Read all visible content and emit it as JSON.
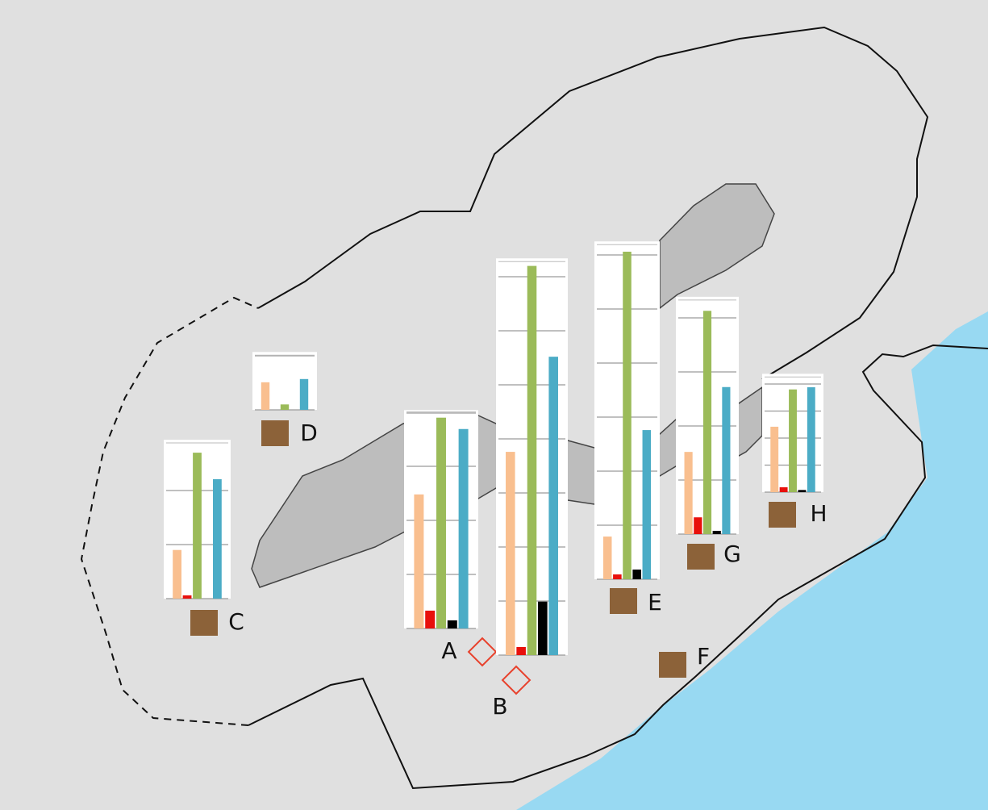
{
  "bar_colors": [
    "#f9bf8f",
    "#e8100c",
    "#9bbb59",
    "#000000",
    "#4bacc6"
  ],
  "marker_colors": {
    "diamond": "#e8412c",
    "square": "#8c6239"
  },
  "sites": [
    {
      "label": "A",
      "marker": "diamond",
      "values": [
        24.8,
        3.3,
        39,
        1.5,
        36.9
      ],
      "ylim": [
        0,
        40.4
      ],
      "yticks": [
        0,
        10,
        20,
        30,
        40
      ]
    },
    {
      "label": "B",
      "marker": "diamond",
      "values": [
        37.6,
        1.5,
        72,
        9.9,
        55.2
      ],
      "ylim": [
        0,
        73.4
      ],
      "yticks": [
        0,
        10,
        20,
        30,
        40,
        50,
        60,
        70
      ]
    },
    {
      "label": "C",
      "marker": "square",
      "values": [
        9,
        0.6,
        27,
        0,
        22.1
      ],
      "ylim": [
        0,
        29.4
      ],
      "yticks": [
        0,
        10,
        20
      ]
    },
    {
      "label": "D",
      "marker": "square",
      "values": [
        5.1,
        0,
        1,
        0,
        5.7
      ],
      "ylim": [
        0,
        10.7
      ],
      "yticks": [
        0,
        10
      ]
    },
    {
      "label": "E",
      "marker": "square",
      "values": [
        7.9,
        0.9,
        60.6,
        1.8,
        27.6
      ],
      "ylim": [
        0,
        62.5
      ],
      "yticks": [
        0,
        10,
        20,
        30,
        40,
        50,
        60
      ]
    },
    {
      "label": "F",
      "marker": "square"
    },
    {
      "label": "G",
      "marker": "square",
      "values": [
        15.2,
        3.1,
        41.3,
        0.6,
        27.2
      ],
      "ylim": [
        0,
        43.9
      ],
      "yticks": [
        0,
        10,
        20,
        30,
        40
      ]
    },
    {
      "label": "H",
      "marker": "square",
      "values": [
        12.1,
        0.9,
        19,
        0.4,
        19.4
      ],
      "ylim": [
        0,
        21.9
      ],
      "yticks": [
        0,
        5,
        10,
        15,
        20
      ]
    }
  ]
}
